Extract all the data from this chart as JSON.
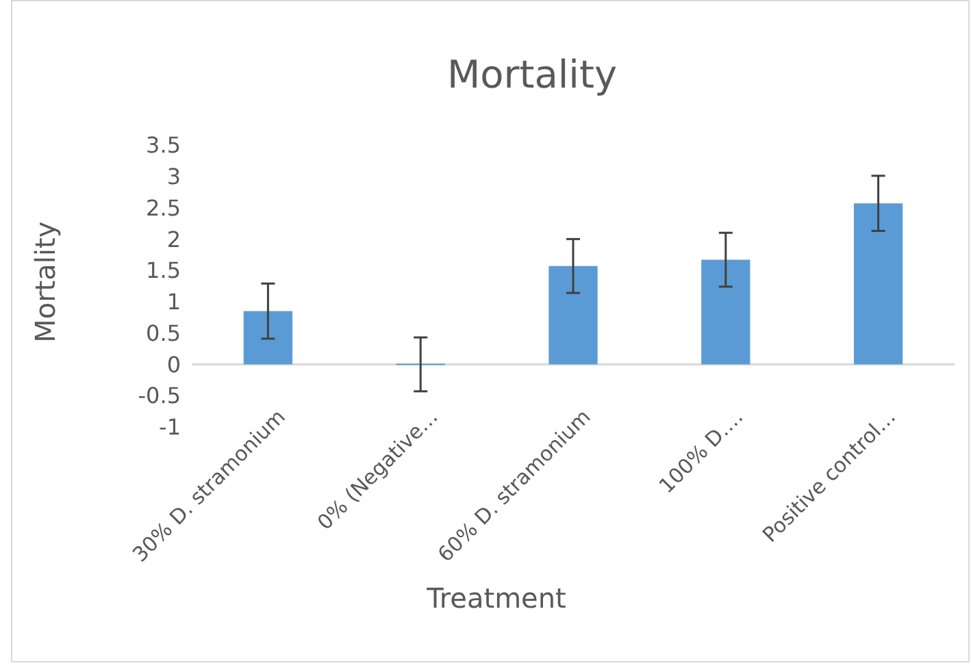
{
  "chart_data": {
    "type": "bar",
    "title": "Mortality",
    "xlabel": "Treatment",
    "ylabel": "Mortality",
    "categories": [
      "30% D. stramonium",
      "0% (Negative…",
      "60% D. stramonium",
      "100% D.…",
      "Positive control…"
    ],
    "values": [
      0.85,
      0,
      1.57,
      1.67,
      2.57
    ],
    "errors": [
      0.44,
      0.43,
      0.43,
      0.43,
      0.44
    ],
    "color": "#5b9bd5",
    "ylim": [
      -1,
      3.5
    ],
    "yticks": [
      -1,
      -0.5,
      0,
      0.5,
      1,
      1.5,
      2,
      2.5,
      3,
      3.5
    ],
    "grid": false
  }
}
